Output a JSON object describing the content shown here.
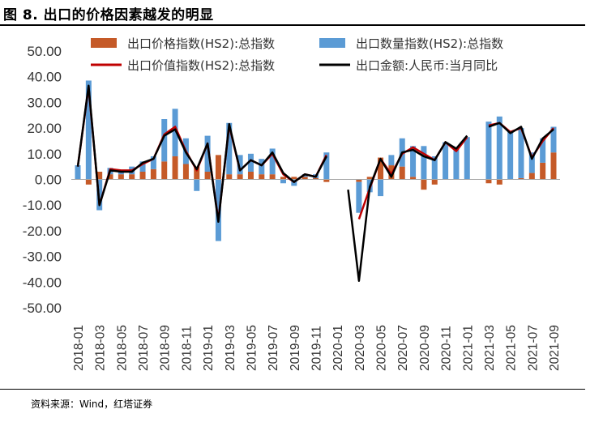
{
  "figure": {
    "title": "图 8. 出口的价格因素越发的明显",
    "source": "资料来源：Wind，红塔证券"
  },
  "chart_data": {
    "type": "bar",
    "y_ticks": [
      "50.00",
      "40.00",
      "30.00",
      "20.00",
      "10.00",
      "0.00",
      "-10.00",
      "-20.00",
      "-30.00",
      "-40.00",
      "-50.00"
    ],
    "ylim": [
      -50,
      50
    ],
    "x": [
      "2018-01",
      "2018-02",
      "2018-03",
      "2018-04",
      "2018-05",
      "2018-06",
      "2018-07",
      "2018-08",
      "2018-09",
      "2018-10",
      "2018-11",
      "2018-12",
      "2019-01",
      "2019-02",
      "2019-03",
      "2019-04",
      "2019-05",
      "2019-06",
      "2019-07",
      "2019-08",
      "2019-09",
      "2019-10",
      "2019-11",
      "2019-12",
      "2020-01",
      "2020-02",
      "2020-03",
      "2020-04",
      "2020-05",
      "2020-06",
      "2020-07",
      "2020-08",
      "2020-09",
      "2020-10",
      "2020-11",
      "2020-12",
      "2021-01",
      "2021-02",
      "2021-03",
      "2021-04",
      "2021-05",
      "2021-06",
      "2021-07",
      "2021-08",
      "2021-09"
    ],
    "x_tick_labels": [
      "2018-01",
      "2018-03",
      "2018-05",
      "2018-07",
      "2018-09",
      "2018-11",
      "2019-01",
      "2019-03",
      "2019-05",
      "2019-07",
      "2019-09",
      "2019-11",
      "2020-01",
      "2020-03",
      "2020-05",
      "2020-07",
      "2020-09",
      "2020-11",
      "2021-01",
      "2021-03",
      "2021-05",
      "2021-07",
      "2021-09"
    ],
    "series": [
      {
        "name": "出口价格指数(HS2):总指数",
        "kind": "bar",
        "color": "#C55A28",
        "values": [
          null,
          -2,
          3,
          2,
          2,
          2,
          3,
          4,
          7,
          9,
          6,
          5,
          3,
          9.5,
          2,
          2,
          3,
          2,
          2,
          1,
          1,
          1,
          0.5,
          -1,
          null,
          null,
          -1,
          1,
          8.5,
          5.5,
          5,
          1,
          -4,
          -2,
          0,
          0,
          0,
          null,
          -1.5,
          -2,
          0,
          0.5,
          2.5,
          6.5,
          10.5
        ]
      },
      {
        "name": "出口数量指数(HS2):总指数",
        "kind": "bar",
        "color": "#5B9BD5",
        "values": [
          5.5,
          38.5,
          -12,
          2.5,
          1.5,
          3,
          4,
          5,
          16.5,
          18.5,
          10,
          -4.5,
          14,
          -24,
          20,
          7.5,
          7,
          6,
          10,
          -1.5,
          -2.5,
          1,
          1.5,
          10.5,
          null,
          null,
          -12,
          -5,
          -6.5,
          4,
          11,
          12,
          13,
          9,
          14.5,
          12,
          16.5,
          null,
          22.5,
          24.5,
          19,
          19.5,
          8,
          9.5,
          10
        ]
      },
      {
        "name": "出口价值指数(HS2):总指数",
        "kind": "line",
        "color": "#C00000",
        "values": [
          5,
          36,
          -10,
          4,
          3.5,
          3.5,
          6,
          8,
          17.5,
          20.5,
          11,
          3.5,
          14,
          -16,
          21,
          3.5,
          7.5,
          5.5,
          10,
          2,
          -1,
          2,
          1,
          9.5,
          null,
          null,
          -15.5,
          -3.5,
          8,
          2,
          10,
          12.5,
          10,
          7.5,
          14.5,
          11,
          16.5,
          null,
          21,
          22,
          18.5,
          20,
          8.5,
          15,
          20
        ]
      },
      {
        "name": "出口金额:人民币:当月同比",
        "kind": "line",
        "color": "#000000",
        "values": [
          5,
          36.5,
          -10,
          3.5,
          3,
          3,
          6.5,
          8,
          17,
          19.5,
          10.5,
          4,
          14,
          -16.5,
          21.5,
          3.5,
          7.5,
          5.5,
          10.5,
          2.5,
          -1,
          2,
          1,
          9,
          null,
          -4,
          -39.5,
          -3,
          8,
          1,
          10.5,
          11.5,
          9,
          7.5,
          14.5,
          12,
          17,
          null,
          20.5,
          22,
          18,
          20.5,
          8,
          16,
          19.5
        ]
      }
    ],
    "legend_placement": "top",
    "grid": false
  }
}
